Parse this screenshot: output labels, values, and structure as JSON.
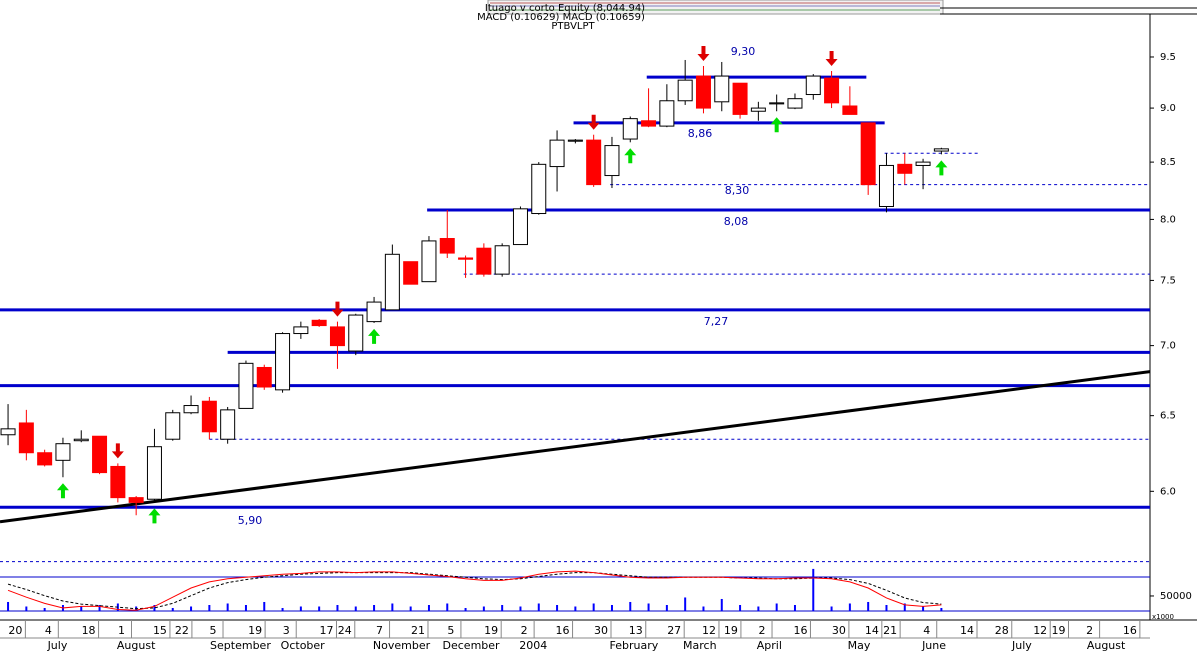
{
  "chart_data": [
    {
      "type": "candlestick",
      "title": "Ituago v corto Equity (8,044.94)",
      "subtitle": "MACD (0.10629) MACD (0.10659)",
      "ticker": "PTBVLPT",
      "log_scale": true,
      "x": [
        0,
        1,
        2,
        3,
        4,
        5,
        6,
        7,
        8,
        9,
        10,
        11,
        12,
        13,
        14,
        15,
        16,
        17,
        18,
        19,
        20,
        21,
        22,
        23,
        24,
        25,
        26,
        27,
        28,
        29,
        30,
        31,
        32,
        33,
        34,
        35,
        36,
        37,
        38,
        39,
        40,
        41,
        42,
        43,
        44,
        45,
        46,
        47,
        48,
        49,
        50,
        51
      ],
      "open": [
        6.37,
        6.45,
        6.25,
        6.2,
        6.33,
        6.36,
        6.16,
        5.96,
        5.95,
        6.34,
        6.52,
        6.6,
        6.34,
        6.55,
        6.84,
        6.68,
        7.09,
        7.19,
        7.14,
        6.96,
        7.18,
        7.27,
        7.65,
        7.49,
        7.84,
        7.68,
        7.76,
        7.55,
        7.79,
        8.05,
        8.46,
        8.69,
        8.7,
        8.38,
        8.71,
        8.88,
        8.83,
        9.07,
        9.31,
        9.06,
        9.24,
        8.97,
        9.04,
        9.0,
        9.13,
        9.29,
        9.02,
        8.86,
        8.11,
        8.48,
        8.47,
        8.6
      ],
      "high": [
        6.58,
        6.54,
        6.27,
        6.35,
        6.4,
        6.36,
        6.18,
        5.97,
        6.41,
        6.54,
        6.64,
        6.63,
        6.56,
        6.89,
        6.86,
        7.1,
        7.18,
        7.2,
        7.18,
        7.24,
        7.37,
        7.79,
        7.65,
        7.86,
        8.08,
        7.7,
        7.8,
        7.8,
        8.11,
        8.5,
        8.79,
        8.71,
        8.75,
        8.73,
        8.92,
        9.19,
        9.23,
        9.47,
        9.41,
        9.45,
        9.24,
        9.06,
        9.13,
        9.14,
        9.33,
        9.36,
        9.21,
        8.86,
        8.58,
        8.58,
        8.53,
        8.63
      ],
      "low": [
        6.3,
        6.2,
        6.16,
        6.09,
        6.32,
        6.11,
        5.93,
        5.85,
        5.93,
        6.33,
        6.51,
        6.34,
        6.31,
        6.55,
        6.68,
        6.66,
        7.05,
        7.14,
        6.83,
        6.93,
        7.17,
        7.27,
        7.47,
        7.49,
        7.68,
        7.52,
        7.53,
        7.53,
        7.79,
        8.04,
        8.24,
        8.67,
        8.28,
        8.27,
        8.68,
        8.82,
        8.82,
        9.03,
        8.95,
        8.97,
        8.9,
        8.88,
        8.97,
        8.99,
        9.08,
        9.0,
        8.94,
        8.21,
        8.06,
        8.3,
        8.26,
        8.57
      ],
      "close": [
        6.41,
        6.25,
        6.17,
        6.31,
        6.34,
        6.12,
        5.96,
        5.93,
        6.29,
        6.52,
        6.57,
        6.39,
        6.54,
        6.87,
        6.7,
        7.09,
        7.14,
        7.15,
        7.0,
        7.23,
        7.33,
        7.71,
        7.47,
        7.82,
        7.72,
        7.67,
        7.55,
        7.78,
        8.09,
        8.48,
        8.7,
        8.7,
        8.3,
        8.65,
        8.9,
        8.83,
        9.07,
        9.27,
        9.0,
        9.31,
        8.94,
        9.0,
        9.05,
        9.09,
        9.31,
        9.05,
        8.94,
        8.3,
        8.47,
        8.4,
        8.5,
        8.62
      ],
      "up_color": "#ffffff",
      "down_color": "#ff0000",
      "xlim": [
        -0.44,
        62.4
      ],
      "ylim": [
        5.55,
        9.9
      ],
      "yticks": [
        {
          "value": 6,
          "label": "6.0"
        },
        {
          "value": 6.5,
          "label": "6.5"
        },
        {
          "value": 7,
          "label": "7.0"
        },
        {
          "value": 7.5,
          "label": "7.5"
        },
        {
          "value": 8,
          "label": "8.0"
        },
        {
          "value": 8.5,
          "label": "8.5"
        },
        {
          "value": 9,
          "label": "9.0"
        },
        {
          "value": 9.5,
          "label": "9.5"
        }
      ],
      "levels": [
        {
          "value": 9.3,
          "label": "9,30",
          "from": 34.9,
          "to": 46.9,
          "dashed": false
        },
        {
          "value": 8.86,
          "label": "8,86",
          "from": 30.9,
          "to": 47.9,
          "dashed": false
        },
        {
          "value": 8.08,
          "label": "8,08",
          "from": 22.9,
          "to": 62.4,
          "dashed": false
        },
        {
          "value": 7.27,
          "label": "7,27",
          "from": -0.44,
          "to": 62.4,
          "dashed": false
        },
        {
          "value": 6.95,
          "from": 12.0,
          "to": 62.4,
          "dashed": false
        },
        {
          "value": 6.71,
          "from": -0.44,
          "to": 62.4,
          "dashed": false
        },
        {
          "value": 5.9,
          "label": "5,90",
          "from": -0.44,
          "to": 62.4,
          "dashed": false
        },
        {
          "value": 8.3,
          "label": "8,30",
          "from": 32.9,
          "to": 62.4,
          "dashed": true
        },
        {
          "value": 8.58,
          "from": 47.9,
          "to": 53.1,
          "dashed": true
        },
        {
          "value": 7.55,
          "from": 24.9,
          "to": 62.4,
          "dashed": true
        },
        {
          "value": 6.34,
          "from": 11.0,
          "to": 62.4,
          "dashed": true
        },
        {
          "value": 5.57,
          "from": -0.44,
          "to": 62.4,
          "dashed": true
        }
      ],
      "level_color": "#0000cc",
      "trendline": {
        "x": [
          -0.44,
          62.4
        ],
        "y": [
          5.81,
          6.81
        ],
        "color": "#000000"
      },
      "sell_signals": [
        6,
        18,
        32,
        38,
        45
      ],
      "sell_color": "#dd0000",
      "buy_signals": [
        3,
        8,
        20,
        34,
        42,
        51
      ],
      "buy_color": "#00dd00"
    },
    {
      "type": "indicator",
      "y_label": "x1000",
      "ylim": [
        0,
        153000
      ],
      "yticks": [
        50000
      ],
      "y2lim": [
        -0.3,
        0.3
      ],
      "volume": {
        "color": "#0000ff",
        "values": [
          30000,
          15000,
          10000,
          20000,
          15000,
          20000,
          25000,
          15000,
          20000,
          10000,
          15000,
          20000,
          25000,
          20000,
          30000,
          10000,
          15000,
          15000,
          20000,
          15000,
          20000,
          25000,
          15000,
          20000,
          25000,
          10000,
          15000,
          20000,
          15000,
          25000,
          20000,
          15000,
          25000,
          20000,
          30000,
          25000,
          20000,
          45000,
          15000,
          40000,
          20000,
          15000,
          25000,
          20000,
          140000,
          15000,
          25000,
          30000,
          20000,
          25000,
          15000,
          10000
        ]
      },
      "macd": {
        "color": "#ff0000",
        "values": [
          -0.03,
          -0.12,
          -0.2,
          -0.26,
          -0.24,
          -0.24,
          -0.28,
          -0.29,
          -0.24,
          -0.12,
          0.0,
          0.08,
          0.12,
          0.14,
          0.16,
          0.18,
          0.19,
          0.21,
          0.21,
          0.2,
          0.21,
          0.21,
          0.19,
          0.17,
          0.15,
          0.12,
          0.1,
          0.1,
          0.13,
          0.18,
          0.21,
          0.22,
          0.2,
          0.17,
          0.14,
          0.13,
          0.13,
          0.14,
          0.14,
          0.14,
          0.13,
          0.12,
          0.12,
          0.13,
          0.13,
          0.12,
          0.08,
          0.0,
          -0.13,
          -0.22,
          -0.24,
          -0.22
        ]
      },
      "signal": {
        "color": "#000000",
        "dashed": true,
        "values": [
          0.05,
          -0.02,
          -0.1,
          -0.17,
          -0.21,
          -0.23,
          -0.25,
          -0.27,
          -0.26,
          -0.2,
          -0.1,
          0.0,
          0.07,
          0.11,
          0.14,
          0.16,
          0.18,
          0.19,
          0.2,
          0.2,
          0.2,
          0.2,
          0.2,
          0.18,
          0.16,
          0.14,
          0.12,
          0.11,
          0.12,
          0.15,
          0.18,
          0.2,
          0.2,
          0.18,
          0.16,
          0.14,
          0.14,
          0.14,
          0.14,
          0.14,
          0.13,
          0.13,
          0.12,
          0.12,
          0.13,
          0.13,
          0.11,
          0.06,
          -0.03,
          -0.13,
          -0.19,
          -0.21
        ]
      },
      "xticks": [
        {
          "value": 0.4,
          "label": "20"
        },
        {
          "value": 2.2,
          "label": "4"
        },
        {
          "value": 4.4,
          "label": "18"
        },
        {
          "value": 6.2,
          "label": "1"
        },
        {
          "value": 8.3,
          "label": "15"
        },
        {
          "value": 9.5,
          "label": "22"
        },
        {
          "value": 11.2,
          "label": "5"
        },
        {
          "value": 13.5,
          "label": "19"
        },
        {
          "value": 15.2,
          "label": "3"
        },
        {
          "value": 17.4,
          "label": "17"
        },
        {
          "value": 18.4,
          "label": "24"
        },
        {
          "value": 20.3,
          "label": "7"
        },
        {
          "value": 22.4,
          "label": "21"
        },
        {
          "value": 24.2,
          "label": "5"
        },
        {
          "value": 26.4,
          "label": "19"
        },
        {
          "value": 28.2,
          "label": "2"
        },
        {
          "value": 30.3,
          "label": "16"
        },
        {
          "value": 32.4,
          "label": "30"
        },
        {
          "value": 34.3,
          "label": "13"
        },
        {
          "value": 36.4,
          "label": "27"
        },
        {
          "value": 38.3,
          "label": "12"
        },
        {
          "value": 39.5,
          "label": "19"
        },
        {
          "value": 41.2,
          "label": "2"
        },
        {
          "value": 43.3,
          "label": "16"
        },
        {
          "value": 45.4,
          "label": "30"
        },
        {
          "value": 47.2,
          "label": "14"
        },
        {
          "value": 48.2,
          "label": "21"
        },
        {
          "value": 50.2,
          "label": "4"
        },
        {
          "value": 52.4,
          "label": "14"
        },
        {
          "value": 54.3,
          "label": "28"
        },
        {
          "value": 56.4,
          "label": "12"
        },
        {
          "value": 57.4,
          "label": "19"
        },
        {
          "value": 59.1,
          "label": "2"
        },
        {
          "value": 61.3,
          "label": "16"
        }
      ],
      "month_ticks": [
        {
          "value": 2.7,
          "label": "July"
        },
        {
          "value": 7.0,
          "label": "August"
        },
        {
          "value": 12.7,
          "label": "September"
        },
        {
          "value": 16.1,
          "label": "October"
        },
        {
          "value": 21.5,
          "label": "November"
        },
        {
          "value": 25.3,
          "label": "December"
        },
        {
          "value": 28.7,
          "label": "2004"
        },
        {
          "value": 34.2,
          "label": "February"
        },
        {
          "value": 37.8,
          "label": "March"
        },
        {
          "value": 41.6,
          "label": "April"
        },
        {
          "value": 46.5,
          "label": "May"
        },
        {
          "value": 50.6,
          "label": "June"
        },
        {
          "value": 55.4,
          "label": "July"
        },
        {
          "value": 60.0,
          "label": "August"
        }
      ]
    }
  ]
}
